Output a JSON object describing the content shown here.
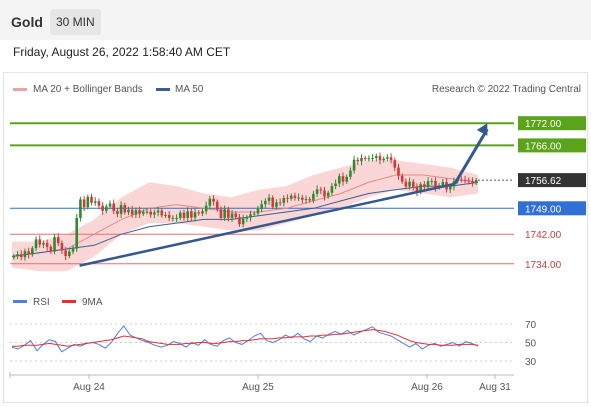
{
  "header": {
    "instrument": "Gold",
    "timeframe": "30 MIN"
  },
  "timestamp": "Friday, August 26, 2022 1:58:40 AM CET",
  "legend": {
    "ma20_label": "MA 20 + Bollinger Bands",
    "ma50_label": "MA 50",
    "credit": "Research © 2022 Trading Central",
    "rsi_label": "RSI",
    "rsi_ma_label": "9MA"
  },
  "colors": {
    "candle_up": "#2f8a2f",
    "candle_down": "#d03a3a",
    "bollinger_band": "#f8c8c8",
    "ma20": "#e88888",
    "ma50": "#3a5f95",
    "resistance": "#5aa31a",
    "support": "#e07070",
    "pivot": "#2f6fd6",
    "trendline": "#35598f",
    "current_price": "#333333",
    "rsi": "#4d7fe0",
    "rsi_ma": "#e53030"
  },
  "chart_data": [
    {
      "type": "candlestick",
      "title": "Gold",
      "ylim": [
        1728,
        1778
      ],
      "x_ticks": [
        "Aug 24",
        "Aug 25",
        "Aug 26",
        "Aug 31"
      ],
      "levels": [
        {
          "value": 1772.0,
          "label": "1772.00",
          "kind": "resistance"
        },
        {
          "value": 1766.0,
          "label": "1766.00",
          "kind": "resistance"
        },
        {
          "value": 1756.62,
          "label": "1756.62",
          "kind": "current"
        },
        {
          "value": 1749.0,
          "label": "1749.00",
          "kind": "pivot"
        },
        {
          "value": 1742.0,
          "label": "1742.00",
          "kind": "support"
        },
        {
          "value": 1734.0,
          "label": "1734.00",
          "kind": "support"
        }
      ],
      "trendline": {
        "from": [
          0.145,
          1733.5
        ],
        "to": [
          0.95,
          1755.6
        ]
      },
      "projection_arrow": {
        "from": [
          0.95,
          1755.6
        ],
        "to": [
          1.02,
          1772.0
        ]
      },
      "close_series": [
        1736,
        1736.6,
        1735.8,
        1737.4,
        1736.5,
        1738.2,
        1740.6,
        1739.2,
        1739.6,
        1738.6,
        1737.3,
        1741.2,
        1739.6,
        1737.6,
        1736.1,
        1737.3,
        1738.1,
        1746.4,
        1751.4,
        1749.3,
        1752.1,
        1750.5,
        1750.9,
        1749.7,
        1748.3,
        1749.5,
        1750.3,
        1748.3,
        1747.5,
        1749.9,
        1747.9,
        1748.6,
        1747.3,
        1748.5,
        1747.5,
        1748.1,
        1748.1,
        1747.3,
        1747.9,
        1748.4,
        1747.1,
        1747.2,
        1746.4,
        1746.4,
        1746.4,
        1747.8,
        1746.4,
        1748.2,
        1746.5,
        1747.9,
        1747.6,
        1748.2,
        1749.7,
        1751.6,
        1750.8,
        1748.7,
        1746.4,
        1748.7,
        1746.4,
        1747.6,
        1746.6,
        1744.7,
        1746.2,
        1746.5,
        1747.4,
        1747.6,
        1748.8,
        1750.1,
        1751.0,
        1751.9,
        1749.4,
        1750.6,
        1750.5,
        1751.8,
        1751.6,
        1752.4,
        1751.8,
        1751.9,
        1751.3,
        1751.5,
        1751.1,
        1752.9,
        1754.1,
        1753.8,
        1752.2,
        1753.2,
        1755.0,
        1755.7,
        1757.7,
        1756.2,
        1757.5,
        1759.2,
        1762.1,
        1761.7,
        1762.6,
        1762.4,
        1762.5,
        1762.6,
        1763.1,
        1762.0,
        1762.4,
        1762.8,
        1762.0,
        1760.0,
        1757.8,
        1756.2,
        1754.9,
        1756.2,
        1754.8,
        1753.4,
        1755.5,
        1754.7,
        1756.3,
        1756.4,
        1754.6,
        1755.2,
        1756.1,
        1754.1,
        1754.9,
        1756.3,
        1756.8,
        1756.7,
        1756.6,
        1756.4,
        1755.9,
        1756.6
      ],
      "bollinger_upper": [
        1740,
        1740,
        1742,
        1746,
        1752,
        1756,
        1755,
        1753,
        1752,
        1754,
        1755,
        1758,
        1760,
        1762,
        1762,
        1761,
        1760,
        1758
      ],
      "bollinger_lower": [
        1733,
        1732,
        1732,
        1736,
        1742,
        1745,
        1745,
        1744,
        1743,
        1743,
        1745,
        1747,
        1749,
        1752,
        1754,
        1753,
        1752,
        1753
      ],
      "ma20": [
        1736,
        1737,
        1738,
        1742,
        1746,
        1749,
        1750,
        1749,
        1748,
        1748,
        1749,
        1751,
        1753,
        1756,
        1758,
        1758,
        1757,
        1756
      ],
      "ma50": [
        1736,
        1737,
        1738,
        1739,
        1742,
        1744,
        1745,
        1746,
        1746,
        1747,
        1748,
        1749,
        1751,
        1753,
        1754,
        1755,
        1755,
        1756
      ]
    },
    {
      "type": "line",
      "title": "RSI",
      "ylim": [
        20,
        80
      ],
      "y_ticks": [
        70,
        50,
        30
      ],
      "series": [
        {
          "name": "RSI",
          "values": [
            45,
            43,
            47,
            52,
            41,
            48,
            53,
            51,
            40,
            44,
            48,
            46,
            49,
            50,
            48,
            44,
            50,
            60,
            68,
            58,
            55,
            52,
            50,
            47,
            45,
            47,
            51,
            49,
            45,
            50,
            47,
            53,
            48,
            46,
            52,
            55,
            50,
            48,
            52,
            57,
            60,
            52,
            50,
            53,
            58,
            55,
            60,
            54,
            51,
            57,
            55,
            59,
            62,
            59,
            63,
            58,
            61,
            64,
            67,
            61,
            59,
            57,
            53,
            49,
            45,
            49,
            43,
            47,
            49,
            46,
            48,
            50,
            46,
            51,
            49,
            46
          ]
        },
        {
          "name": "9MA",
          "values": [
            46,
            46,
            47,
            47,
            47,
            48,
            49,
            48,
            47,
            46,
            47,
            48,
            49,
            50,
            51,
            52,
            53,
            55,
            57,
            56,
            55,
            54,
            51,
            50,
            49,
            48,
            48,
            48,
            49,
            49,
            50,
            50,
            49,
            49,
            50,
            51,
            51,
            52,
            52,
            53,
            54,
            54,
            54,
            55,
            55,
            56,
            56,
            56,
            57,
            57,
            58,
            58,
            59,
            59,
            60,
            61,
            62,
            63,
            64,
            63,
            62,
            60,
            58,
            55,
            52,
            50,
            49,
            48,
            48,
            47,
            47,
            47,
            48,
            48,
            48,
            47
          ]
        }
      ]
    }
  ]
}
